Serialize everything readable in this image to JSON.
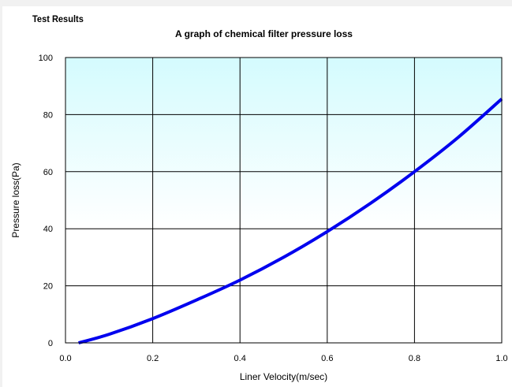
{
  "page": {
    "header": "Test Results"
  },
  "chart_data": {
    "type": "line",
    "title": "A graph of chemical filter pressure loss",
    "xlabel": "Liner Velocity(m/sec)",
    "ylabel": "Pressure loss(Pa)",
    "xlim": [
      0,
      1.0
    ],
    "ylim": [
      0,
      100
    ],
    "xticks": [
      "0.0",
      "0.2",
      "0.4",
      "0.6",
      "0.8",
      "1.0"
    ],
    "yticks": [
      "0",
      "20",
      "40",
      "60",
      "80",
      "100"
    ],
    "grid": true,
    "shaded_band": {
      "from": 40,
      "to": 100,
      "color_top": "#d4fbfe",
      "color_bottom": "#ffffff"
    },
    "series": [
      {
        "color": "#0000ee",
        "x": [
          0.03,
          0.1,
          0.2,
          0.3,
          0.4,
          0.5,
          0.6,
          0.7,
          0.8,
          0.9,
          1.0
        ],
        "y": [
          0,
          3,
          8.5,
          15,
          22,
          30,
          39,
          49,
          60,
          72,
          85.5
        ]
      }
    ]
  }
}
